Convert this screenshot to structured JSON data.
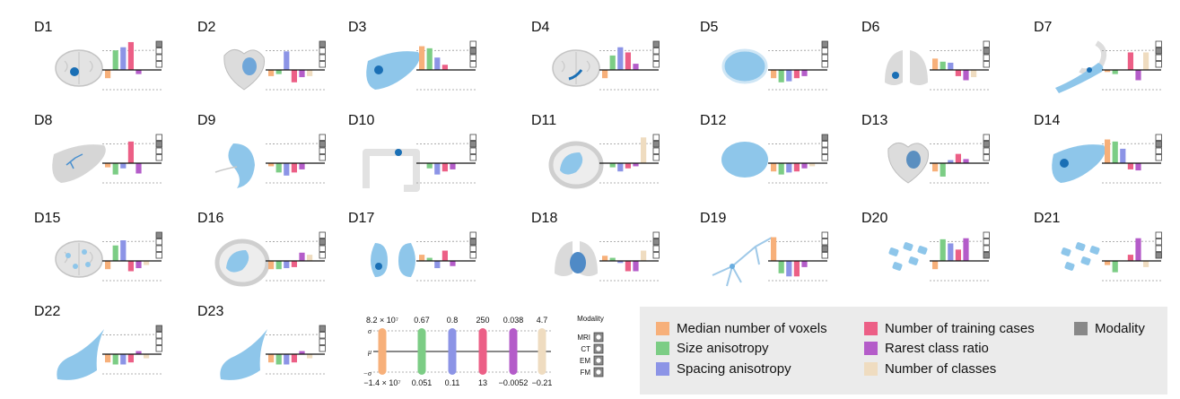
{
  "colors": {
    "voxels": "#f7b07a",
    "size_aniso": "#7ccd85",
    "spacing_aniso": "#8c94e6",
    "train_cases": "#ec5f86",
    "rare_ratio": "#b45cc9",
    "n_classes": "#efdcc0",
    "modality": "#888888",
    "organ": "#8ec6ea",
    "organ_dark": "#1a6fb5",
    "silhouette": "#d9d9d9"
  },
  "chart_data": {
    "type": "bar",
    "categories": [
      "Median number of voxels",
      "Size anisotropy",
      "Spacing anisotropy",
      "Number of training cases",
      "Rarest class ratio",
      "Number of classes"
    ],
    "datasets": [
      {
        "label": "D1",
        "organ": "brain",
        "values": [
          -0.8,
          1.9,
          2.2,
          2.7,
          -0.4,
          0
        ],
        "modality": [
          1,
          0,
          0,
          0
        ]
      },
      {
        "label": "D2",
        "organ": "heart",
        "values": [
          -0.6,
          -0.4,
          1.8,
          -1.2,
          -0.7,
          -0.6
        ],
        "modality": [
          1,
          0,
          0,
          0
        ]
      },
      {
        "label": "D3",
        "organ": "liver",
        "values": [
          2.3,
          2.1,
          1.2,
          0.5,
          0,
          0
        ],
        "modality": [
          0,
          1,
          0,
          0
        ]
      },
      {
        "label": "D4",
        "organ": "brain-hippocampus",
        "values": [
          -0.8,
          1.4,
          2.2,
          1.7,
          0.6,
          0
        ],
        "modality": [
          1,
          0,
          0,
          0
        ]
      },
      {
        "label": "D5",
        "organ": "prostate",
        "values": [
          -0.8,
          -1.2,
          -1.1,
          -0.8,
          -0.6,
          0
        ],
        "modality": [
          1,
          0,
          0,
          0
        ]
      },
      {
        "label": "D6",
        "organ": "lung",
        "values": [
          1.1,
          0.8,
          0.7,
          -0.6,
          -1.0,
          -0.7
        ],
        "modality": [
          0,
          1,
          0,
          0
        ]
      },
      {
        "label": "D7",
        "organ": "pancreas",
        "values": [
          -0.2,
          -0.4,
          0,
          1.7,
          -1.0,
          1.7
        ],
        "modality": [
          0,
          1,
          0,
          0
        ]
      },
      {
        "label": "D8",
        "organ": "hepatic-vessel",
        "values": [
          -0.4,
          -1.1,
          -0.5,
          2.1,
          -1.0,
          0
        ],
        "modality": [
          0,
          1,
          0,
          0
        ]
      },
      {
        "label": "D9",
        "organ": "spleen",
        "values": [
          -0.3,
          -0.9,
          -1.2,
          -0.9,
          -0.6,
          0
        ],
        "modality": [
          0,
          1,
          0,
          0
        ]
      },
      {
        "label": "D10",
        "organ": "colon",
        "values": [
          0,
          -0.5,
          -1.1,
          -0.8,
          -0.6,
          0
        ],
        "modality": [
          0,
          1,
          0,
          0
        ]
      },
      {
        "label": "D11",
        "organ": "abdomen",
        "values": [
          0,
          -0.4,
          -0.8,
          -0.5,
          -0.3,
          2.5
        ],
        "modality": [
          0,
          1,
          0,
          0
        ]
      },
      {
        "label": "D12",
        "organ": "kidney",
        "values": [
          -0.8,
          -1.1,
          -0.9,
          -0.8,
          -0.5,
          -0.3
        ],
        "modality": [
          1,
          0,
          0,
          0
        ]
      },
      {
        "label": "D13",
        "organ": "heart-ct",
        "values": [
          -0.8,
          -1.3,
          0.3,
          0.9,
          0.4,
          0
        ],
        "modality": [
          0,
          1,
          0,
          0
        ]
      },
      {
        "label": "D14",
        "organ": "liver-ct",
        "values": [
          2.3,
          2.1,
          1.4,
          -0.6,
          -0.7,
          0
        ],
        "modality": [
          0,
          1,
          0,
          0
        ]
      },
      {
        "label": "D15",
        "organ": "brain-multi",
        "values": [
          -0.8,
          1.5,
          2.0,
          -1.0,
          -0.7,
          -0.4
        ],
        "modality": [
          1,
          0,
          0,
          0
        ]
      },
      {
        "label": "D16",
        "organ": "abdomen-2",
        "values": [
          -0.8,
          -0.8,
          -0.7,
          -0.6,
          0.8,
          0.6
        ],
        "modality": [
          0,
          1,
          0,
          0
        ]
      },
      {
        "label": "D17",
        "organ": "kidney-pair",
        "values": [
          0.6,
          0.3,
          -0.7,
          1.0,
          -0.5,
          0
        ],
        "modality": [
          0,
          1,
          0,
          0
        ]
      },
      {
        "label": "D18",
        "organ": "lung-heart",
        "values": [
          0.5,
          0.3,
          -0.2,
          -1.0,
          -1.0,
          1.0
        ],
        "modality": [
          0,
          1,
          0,
          0
        ]
      },
      {
        "label": "D19",
        "organ": "neuron",
        "values": [
          2.3,
          -1.2,
          -1.5,
          -1.5,
          -0.6,
          0
        ],
        "modality": [
          0,
          0,
          1,
          0
        ]
      },
      {
        "label": "D20",
        "organ": "cells",
        "values": [
          -0.8,
          2.1,
          1.7,
          1.1,
          2.2,
          0
        ],
        "modality": [
          0,
          0,
          0,
          1
        ]
      },
      {
        "label": "D21",
        "organ": "cells-2",
        "values": [
          -0.4,
          -1.1,
          0,
          0.6,
          2.2,
          -0.6
        ],
        "modality": [
          0,
          0,
          0,
          1
        ]
      },
      {
        "label": "D22",
        "organ": "tail",
        "values": [
          -0.8,
          -1.0,
          -1.0,
          -0.8,
          0.3,
          -0.4
        ],
        "modality": [
          1,
          0,
          0,
          0
        ]
      },
      {
        "label": "D23",
        "organ": "tail-2",
        "values": [
          -0.8,
          -1.0,
          -1.0,
          -0.8,
          0.3,
          -0.4
        ],
        "modality": [
          1,
          0,
          0,
          0
        ]
      }
    ],
    "ylim": [
      -2.5,
      2.5
    ],
    "key": {
      "top_labels": [
        "8.2 × 10⁷",
        "0.67",
        "0.8",
        "250",
        "0.038",
        "4.7"
      ],
      "bottom_labels": [
        "−1.4 × 10⁷",
        "0.051",
        "0.11",
        "13",
        "−0.0052",
        "−0.21"
      ],
      "axis_labels": [
        "σ",
        "μ",
        "−σ"
      ],
      "modality_title": "Modality",
      "modalities": [
        "MRI",
        "CT",
        "EM",
        "FM"
      ]
    }
  },
  "legend": [
    {
      "label": "Median number of voxels",
      "color_key": "voxels"
    },
    {
      "label": "Size anisotropy",
      "color_key": "size_aniso"
    },
    {
      "label": "Spacing anisotropy",
      "color_key": "spacing_aniso"
    },
    {
      "label": "Number of training cases",
      "color_key": "train_cases"
    },
    {
      "label": "Rarest class ratio",
      "color_key": "rare_ratio"
    },
    {
      "label": "Number of classes",
      "color_key": "n_classes"
    },
    {
      "label": "Modality",
      "color_key": "modality"
    }
  ]
}
